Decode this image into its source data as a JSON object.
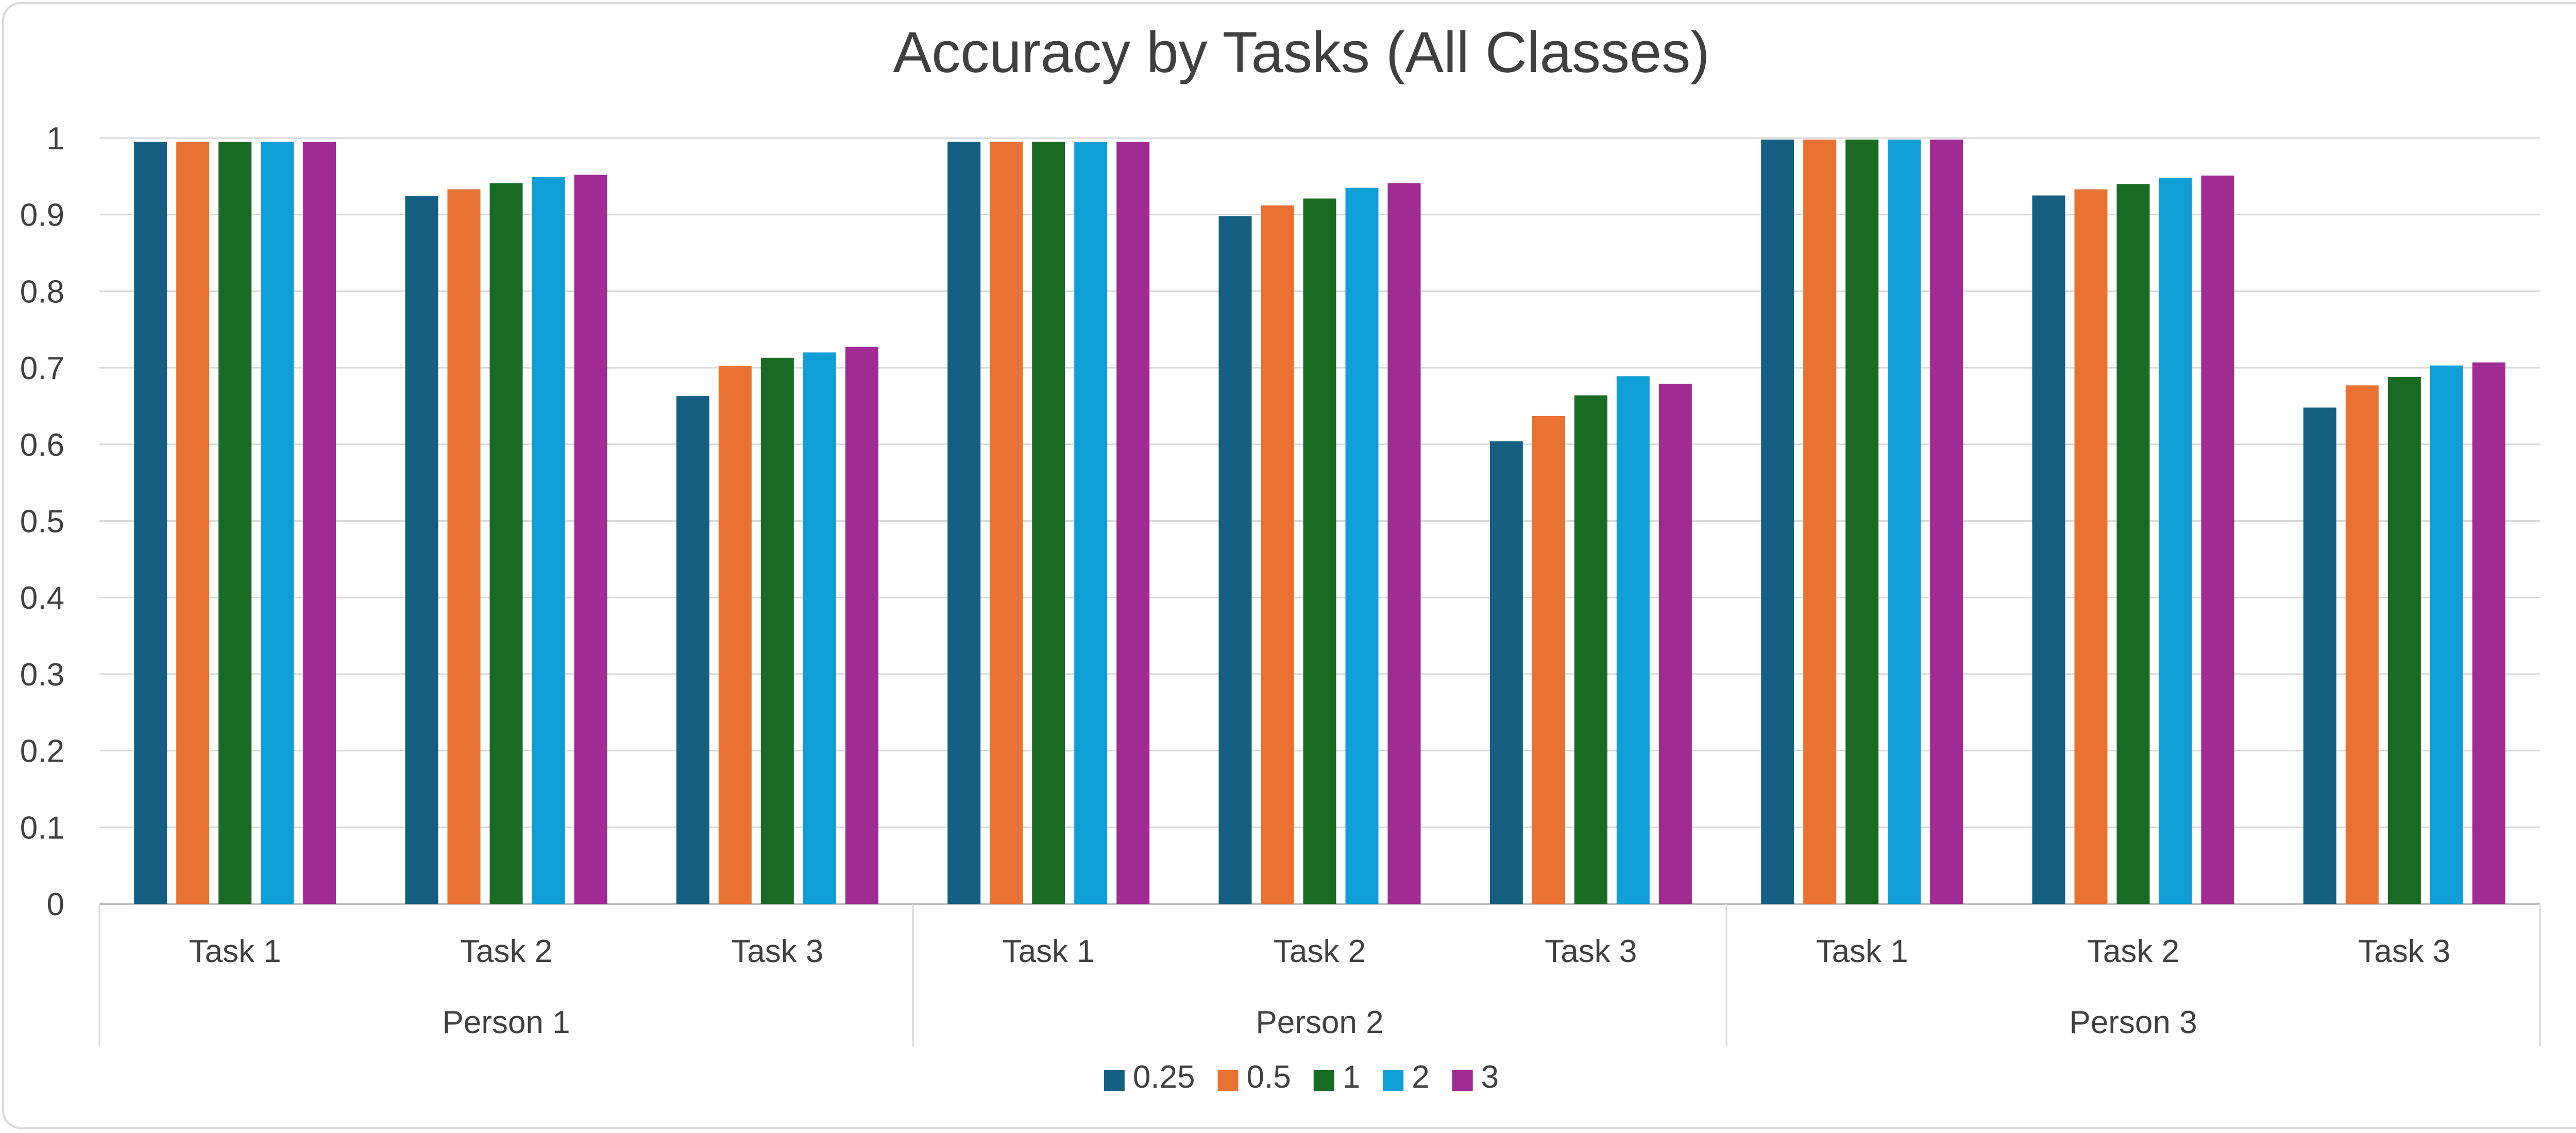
{
  "chart_data": {
    "type": "bar",
    "title": "Accuracy by Tasks (All Classes)",
    "xlabel": "",
    "ylabel": "",
    "ylim": [
      0,
      1
    ],
    "yticks": [
      "0",
      "0.1",
      "0.2",
      "0.3",
      "0.4",
      "0.5",
      "0.6",
      "0.7",
      "0.8",
      "0.9",
      "1"
    ],
    "grid": true,
    "legend_position": "bottom",
    "groups": [
      "Person 1",
      "Person 2",
      "Person 3"
    ],
    "categories": [
      "Task 1",
      "Task 2",
      "Task 3",
      "Task 1",
      "Task 2",
      "Task 3",
      "Task 1",
      "Task 2",
      "Task 3"
    ],
    "series": [
      {
        "name": "0.25",
        "color": "#156082",
        "values": [
          0.995,
          0.924,
          0.663,
          0.995,
          0.898,
          0.604,
          0.998,
          0.925,
          0.648
        ]
      },
      {
        "name": "0.5",
        "color": "#E97132",
        "values": [
          0.995,
          0.933,
          0.702,
          0.995,
          0.912,
          0.637,
          0.998,
          0.933,
          0.677
        ]
      },
      {
        "name": "1",
        "color": "#196B24",
        "values": [
          0.995,
          0.941,
          0.713,
          0.995,
          0.921,
          0.664,
          0.998,
          0.94,
          0.688
        ]
      },
      {
        "name": "2",
        "color": "#0F9ED5",
        "values": [
          0.995,
          0.949,
          0.72,
          0.995,
          0.935,
          0.689,
          0.998,
          0.948,
          0.703
        ]
      },
      {
        "name": "3",
        "color": "#A02B93",
        "values": [
          0.995,
          0.952,
          0.727,
          0.995,
          0.941,
          0.679,
          0.998,
          0.951,
          0.707
        ]
      }
    ]
  }
}
